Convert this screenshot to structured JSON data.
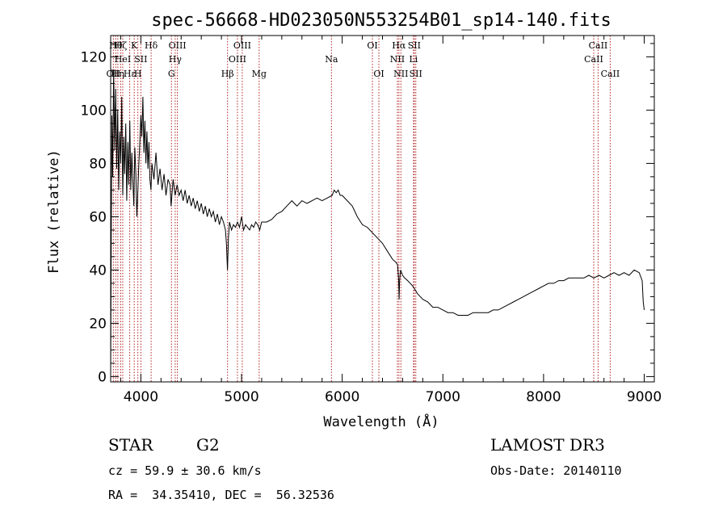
{
  "chart_data": {
    "type": "line",
    "title": "spec-56668-HD023050N553254B01_sp14-140.fits",
    "xlabel": "Wavelength (Å)",
    "ylabel": "Flux (relative)",
    "xlim": [
      3700,
      9100
    ],
    "ylim": [
      -2,
      128
    ],
    "xticks": [
      4000,
      5000,
      6000,
      7000,
      8000,
      9000
    ],
    "yticks": [
      0,
      20,
      40,
      60,
      80,
      100,
      120
    ],
    "line_color": "#000000",
    "marker_color": "#b22222",
    "series": [
      {
        "values": [
          [
            3700,
            0
          ],
          [
            3705,
            45
          ],
          [
            3712,
            98
          ],
          [
            3720,
            75
          ],
          [
            3730,
            115
          ],
          [
            3740,
            85
          ],
          [
            3750,
            108
          ],
          [
            3760,
            78
          ],
          [
            3770,
            100
          ],
          [
            3780,
            70
          ],
          [
            3790,
            92
          ],
          [
            3800,
            80
          ],
          [
            3810,
            105
          ],
          [
            3820,
            68
          ],
          [
            3830,
            90
          ],
          [
            3840,
            76
          ],
          [
            3850,
            95
          ],
          [
            3860,
            66
          ],
          [
            3870,
            88
          ],
          [
            3880,
            72
          ],
          [
            3890,
            96
          ],
          [
            3900,
            70
          ],
          [
            3910,
            84
          ],
          [
            3920,
            74
          ],
          [
            3930,
            64
          ],
          [
            3940,
            86
          ],
          [
            3950,
            76
          ],
          [
            3960,
            60
          ],
          [
            3970,
            70
          ],
          [
            3980,
            80
          ],
          [
            3990,
            88
          ],
          [
            4000,
            98
          ],
          [
            4010,
            90
          ],
          [
            4020,
            105
          ],
          [
            4030,
            84
          ],
          [
            4040,
            96
          ],
          [
            4050,
            80
          ],
          [
            4060,
            92
          ],
          [
            4070,
            78
          ],
          [
            4080,
            88
          ],
          [
            4090,
            74
          ],
          [
            4100,
            70
          ],
          [
            4110,
            80
          ],
          [
            4130,
            74
          ],
          [
            4150,
            84
          ],
          [
            4170,
            72
          ],
          [
            4190,
            78
          ],
          [
            4210,
            70
          ],
          [
            4230,
            76
          ],
          [
            4250,
            68
          ],
          [
            4270,
            74
          ],
          [
            4290,
            72
          ],
          [
            4300,
            64
          ],
          [
            4320,
            74
          ],
          [
            4340,
            68
          ],
          [
            4360,
            72
          ],
          [
            4380,
            68
          ],
          [
            4400,
            70
          ],
          [
            4420,
            66
          ],
          [
            4440,
            70
          ],
          [
            4460,
            65
          ],
          [
            4480,
            68
          ],
          [
            4500,
            64
          ],
          [
            4520,
            67
          ],
          [
            4540,
            63
          ],
          [
            4560,
            66
          ],
          [
            4580,
            62
          ],
          [
            4600,
            65
          ],
          [
            4620,
            61
          ],
          [
            4640,
            64
          ],
          [
            4660,
            60
          ],
          [
            4680,
            63
          ],
          [
            4700,
            60
          ],
          [
            4720,
            62
          ],
          [
            4740,
            58
          ],
          [
            4760,
            61
          ],
          [
            4780,
            57
          ],
          [
            4800,
            60
          ],
          [
            4820,
            58
          ],
          [
            4840,
            55
          ],
          [
            4850,
            50
          ],
          [
            4860,
            40
          ],
          [
            4870,
            52
          ],
          [
            4880,
            58
          ],
          [
            4900,
            55
          ],
          [
            4920,
            57
          ],
          [
            4940,
            56
          ],
          [
            4960,
            58
          ],
          [
            4980,
            56
          ],
          [
            5000,
            60
          ],
          [
            5020,
            55
          ],
          [
            5040,
            57
          ],
          [
            5060,
            56
          ],
          [
            5080,
            55
          ],
          [
            5100,
            57
          ],
          [
            5120,
            56
          ],
          [
            5140,
            58
          ],
          [
            5160,
            57
          ],
          [
            5180,
            55
          ],
          [
            5200,
            58
          ],
          [
            5250,
            58
          ],
          [
            5300,
            59
          ],
          [
            5350,
            61
          ],
          [
            5400,
            62
          ],
          [
            5450,
            64
          ],
          [
            5500,
            66
          ],
          [
            5550,
            64
          ],
          [
            5600,
            66
          ],
          [
            5650,
            65
          ],
          [
            5700,
            66
          ],
          [
            5750,
            67
          ],
          [
            5800,
            66
          ],
          [
            5850,
            67
          ],
          [
            5900,
            68
          ],
          [
            5920,
            70
          ],
          [
            5940,
            69
          ],
          [
            5960,
            70
          ],
          [
            5980,
            68
          ],
          [
            6000,
            68
          ],
          [
            6050,
            66
          ],
          [
            6100,
            64
          ],
          [
            6150,
            60
          ],
          [
            6200,
            57
          ],
          [
            6250,
            56
          ],
          [
            6300,
            54
          ],
          [
            6350,
            52
          ],
          [
            6400,
            50
          ],
          [
            6450,
            47
          ],
          [
            6500,
            44
          ],
          [
            6530,
            43
          ],
          [
            6550,
            42
          ],
          [
            6560,
            37
          ],
          [
            6565,
            29
          ],
          [
            6570,
            36
          ],
          [
            6580,
            40
          ],
          [
            6600,
            38
          ],
          [
            6620,
            37
          ],
          [
            6650,
            36
          ],
          [
            6700,
            34
          ],
          [
            6750,
            31
          ],
          [
            6800,
            29
          ],
          [
            6850,
            28
          ],
          [
            6900,
            26
          ],
          [
            6950,
            26
          ],
          [
            7000,
            25
          ],
          [
            7050,
            24
          ],
          [
            7100,
            24
          ],
          [
            7150,
            23
          ],
          [
            7200,
            23
          ],
          [
            7250,
            23
          ],
          [
            7300,
            24
          ],
          [
            7350,
            24
          ],
          [
            7400,
            24
          ],
          [
            7450,
            24
          ],
          [
            7500,
            25
          ],
          [
            7550,
            25
          ],
          [
            7600,
            26
          ],
          [
            7650,
            27
          ],
          [
            7700,
            28
          ],
          [
            7750,
            29
          ],
          [
            7800,
            30
          ],
          [
            7850,
            31
          ],
          [
            7900,
            32
          ],
          [
            7950,
            33
          ],
          [
            8000,
            34
          ],
          [
            8050,
            35
          ],
          [
            8100,
            35
          ],
          [
            8150,
            36
          ],
          [
            8200,
            36
          ],
          [
            8250,
            37
          ],
          [
            8300,
            37
          ],
          [
            8350,
            37
          ],
          [
            8400,
            37
          ],
          [
            8450,
            38
          ],
          [
            8500,
            37
          ],
          [
            8550,
            38
          ],
          [
            8600,
            37
          ],
          [
            8650,
            38
          ],
          [
            8700,
            39
          ],
          [
            8750,
            38
          ],
          [
            8800,
            39
          ],
          [
            8850,
            38
          ],
          [
            8900,
            40
          ],
          [
            8950,
            39
          ],
          [
            8980,
            36
          ],
          [
            8990,
            28
          ],
          [
            9000,
            25
          ]
        ]
      }
    ],
    "line_markers": [
      {
        "wl": 3727,
        "label": "OII",
        "row": 2
      },
      {
        "wl": 3750,
        "label": "Hθ",
        "row": 0
      },
      {
        "wl": 3771,
        "label": "Hη",
        "row": 2
      },
      {
        "wl": 3800,
        "label": "Hζ",
        "row": 0
      },
      {
        "wl": 3820,
        "label": "HeI",
        "row": 1
      },
      {
        "wl": 3889,
        "label": "Hε",
        "row": 2
      },
      {
        "wl": 3934,
        "label": "K",
        "row": 0
      },
      {
        "wl": 3970,
        "label": "H",
        "row": 2
      },
      {
        "wl": 4000,
        "label": "SII",
        "row": 1
      },
      {
        "wl": 4102,
        "label": "Hδ",
        "row": 0
      },
      {
        "wl": 4304,
        "label": "G",
        "row": 2
      },
      {
        "wl": 4341,
        "label": "Hγ",
        "row": 1
      },
      {
        "wl": 4363,
        "label": "OIII",
        "row": 0
      },
      {
        "wl": 4861,
        "label": "Hβ",
        "row": 2
      },
      {
        "wl": 4959,
        "label": "OIII",
        "row": 1
      },
      {
        "wl": 5007,
        "label": "OIII",
        "row": 0
      },
      {
        "wl": 5175,
        "label": "Mg",
        "row": 2
      },
      {
        "wl": 5893,
        "label": "Na",
        "row": 1
      },
      {
        "wl": 6300,
        "label": "OI",
        "row": 0
      },
      {
        "wl": 6364,
        "label": "OI",
        "row": 2
      },
      {
        "wl": 6548,
        "label": "NII",
        "row": 1
      },
      {
        "wl": 6563,
        "label": "Hα",
        "row": 0
      },
      {
        "wl": 6583,
        "label": "NII",
        "row": 2
      },
      {
        "wl": 6708,
        "label": "Li",
        "row": 1
      },
      {
        "wl": 6716,
        "label": "SII",
        "row": 0
      },
      {
        "wl": 6731,
        "label": "SII",
        "row": 2
      },
      {
        "wl": 8498,
        "label": "CaII",
        "row": 1
      },
      {
        "wl": 8542,
        "label": "CaII",
        "row": 0
      },
      {
        "wl": 8662,
        "label": "CaII",
        "row": 2
      }
    ]
  },
  "info": {
    "object_class": "STAR",
    "subclass": "G2",
    "survey": "LAMOST DR3",
    "cz": "cz = 59.9 ± 30.6 km/s",
    "obs_date": "Obs-Date: 20140110",
    "coords": "RA =  34.35410, DEC =  56.32536"
  }
}
